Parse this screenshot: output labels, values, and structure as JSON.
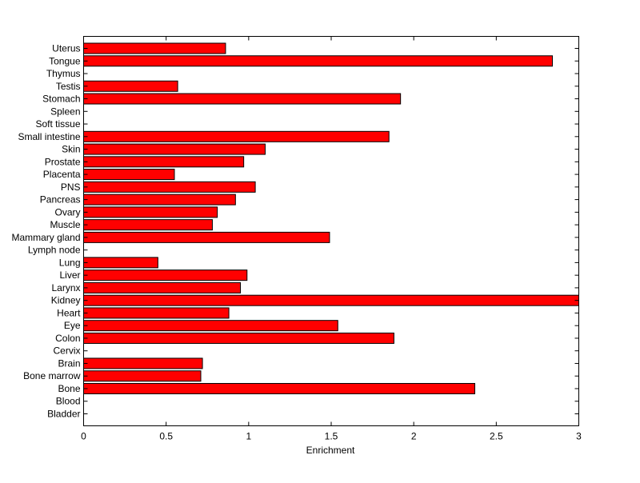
{
  "chart_data": {
    "type": "bar",
    "orientation": "horizontal",
    "title": "",
    "xlabel": "Enrichment",
    "ylabel": "",
    "xlim": [
      0,
      3
    ],
    "xticks": [
      "0",
      "0.5",
      "1",
      "1.5",
      "2",
      "2.5",
      "3"
    ],
    "grid": false,
    "bar_color": "#ff0000",
    "categories": [
      "Uterus",
      "Tongue",
      "Thymus",
      "Testis",
      "Stomach",
      "Spleen",
      "Soft tissue",
      "Small intestine",
      "Skin",
      "Prostate",
      "Placenta",
      "PNS",
      "Pancreas",
      "Ovary",
      "Muscle",
      "Mammary gland",
      "Lymph node",
      "Lung",
      "Liver",
      "Larynx",
      "Kidney",
      "Heart",
      "Eye",
      "Colon",
      "Cervix",
      "Brain",
      "Bone marrow",
      "Bone",
      "Blood",
      "Bladder"
    ],
    "values": [
      0.86,
      2.84,
      0,
      0.57,
      1.92,
      0,
      0,
      1.85,
      1.1,
      0.97,
      0.55,
      1.04,
      0.92,
      0.81,
      0.78,
      1.49,
      0,
      0.45,
      0.99,
      0.95,
      3.0,
      0.88,
      1.54,
      1.88,
      0,
      0.72,
      0.71,
      2.37,
      0,
      0
    ]
  }
}
